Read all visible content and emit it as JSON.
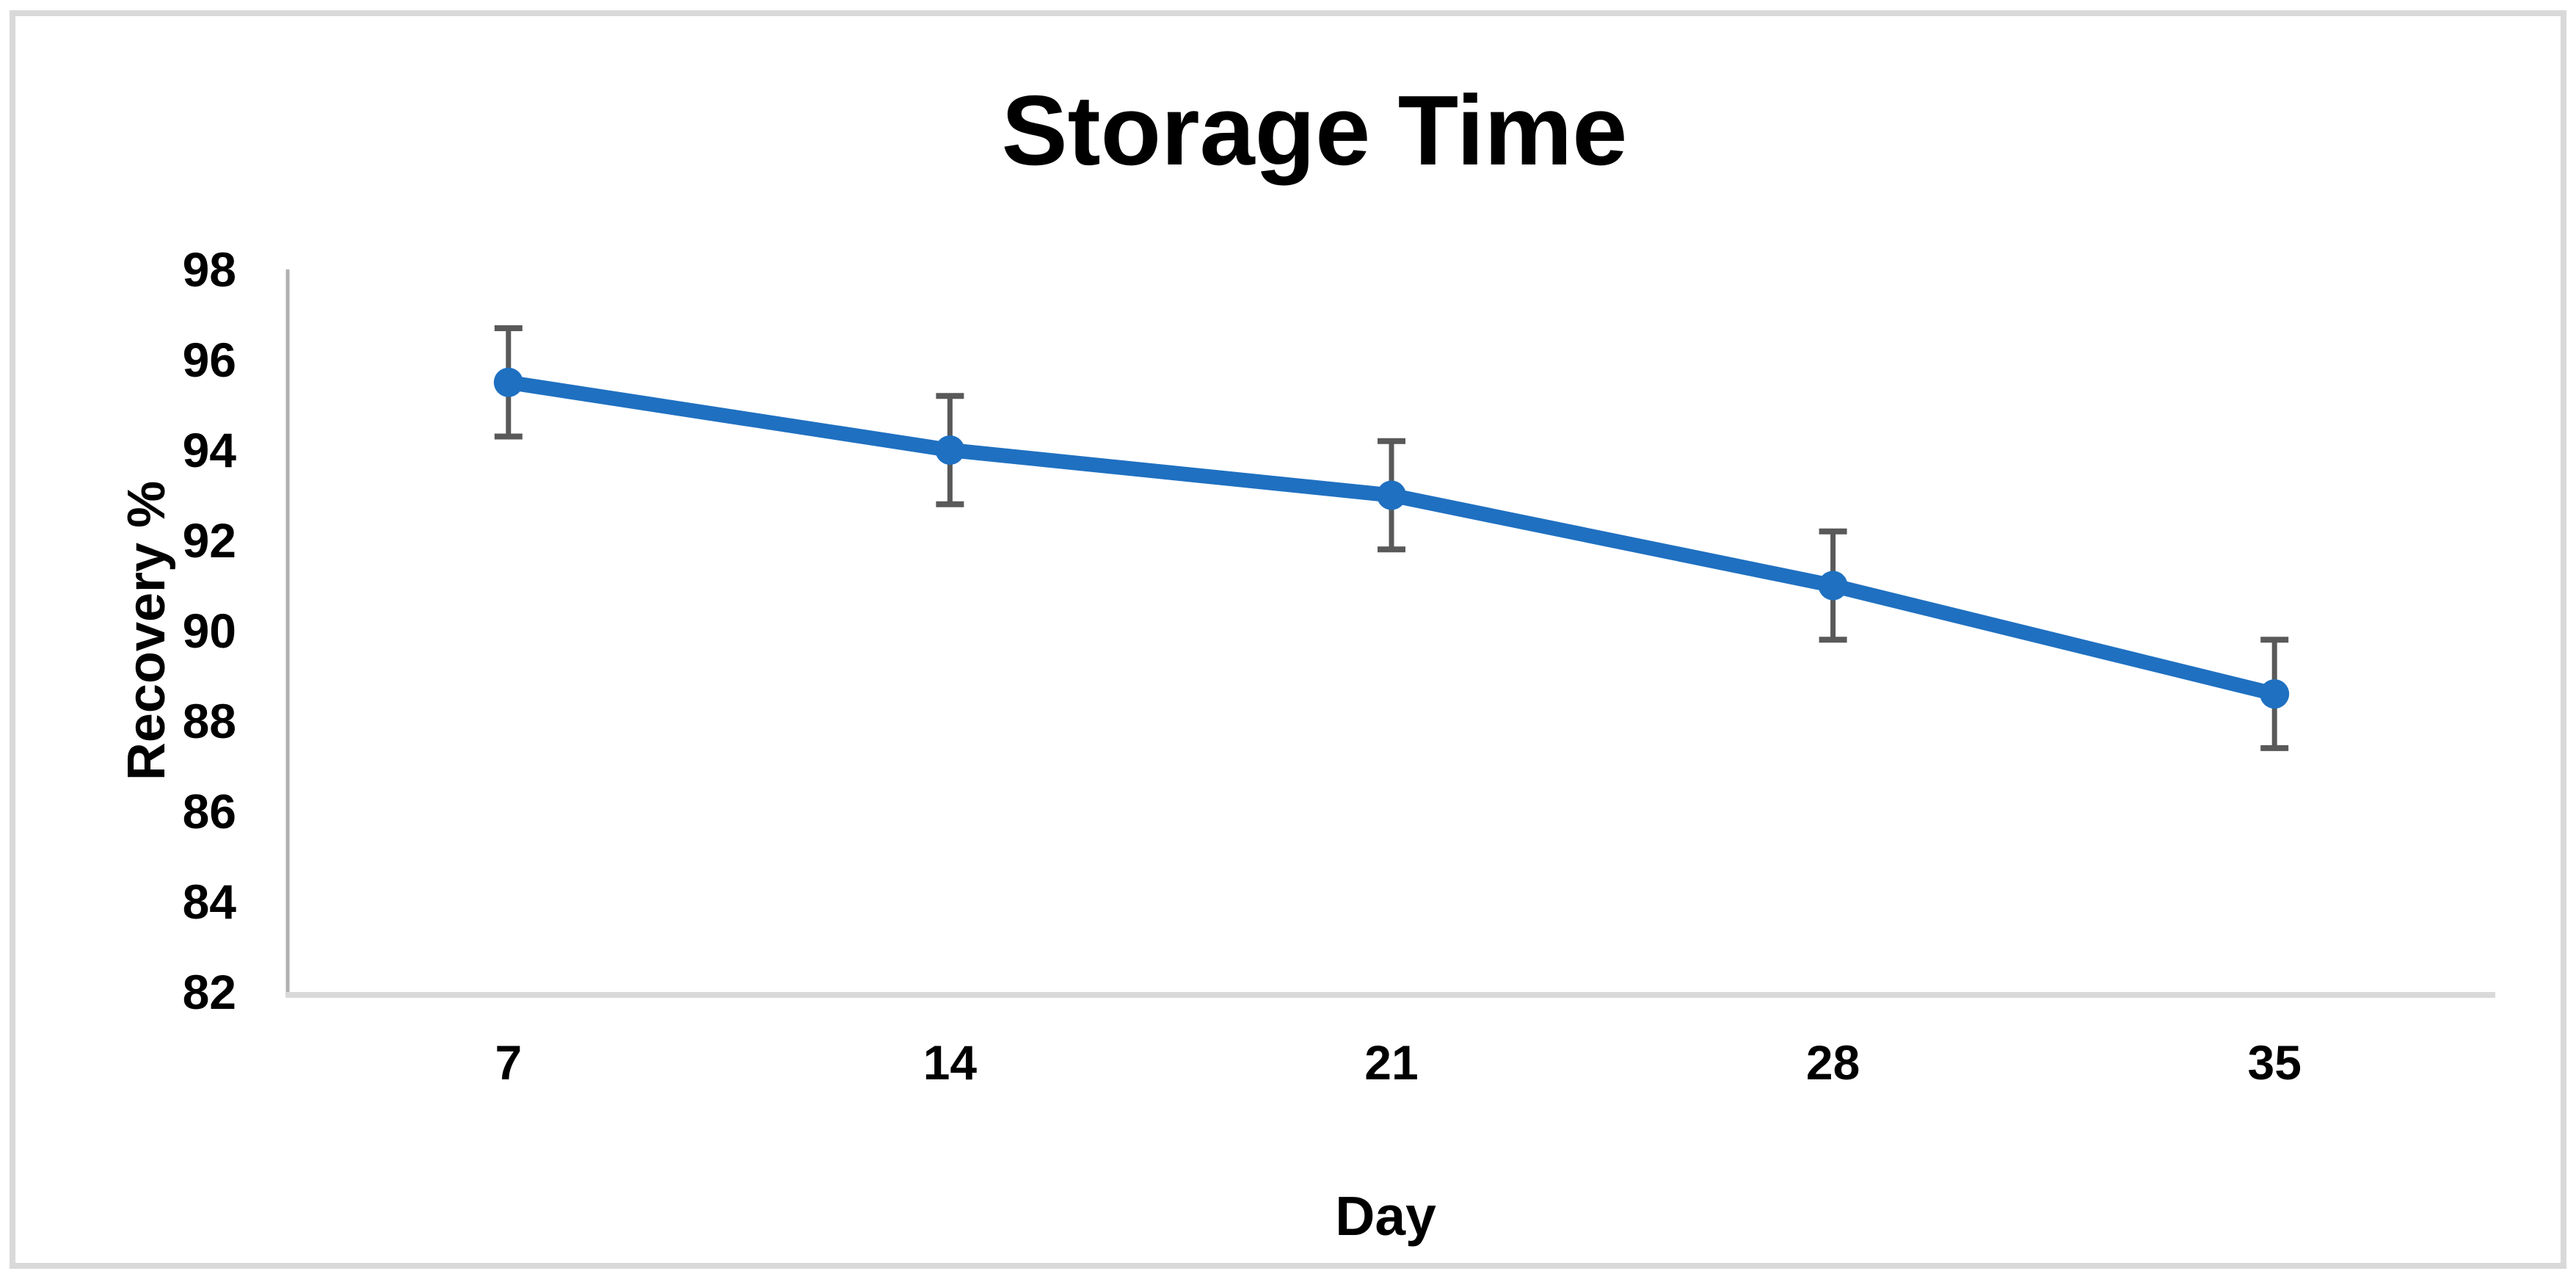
{
  "chart_data": {
    "type": "line",
    "title": "Storage Time",
    "xlabel": "Day",
    "ylabel": "Recovery %",
    "categories": [
      "7",
      "14",
      "21",
      "28",
      "35"
    ],
    "series": [
      {
        "values": [
          95.5,
          94.0,
          93.0,
          91.0,
          88.6
        ],
        "error_bars": [
          1.2,
          1.2,
          1.2,
          1.2,
          1.2
        ],
        "color": "#1F70C1",
        "marker": "circle"
      }
    ],
    "ylim": [
      82,
      98
    ],
    "ytick_step": 2,
    "yticks": [
      98,
      96,
      94,
      92,
      90,
      88,
      86,
      84,
      82
    ],
    "grid": false,
    "legend": false,
    "colors": {
      "error_bar": "#595959",
      "y_axis_line": "#B0B0B0",
      "x_axis_line": "#D9D9D9",
      "text": "#000000"
    }
  },
  "frame": {
    "border_color": "#D9D9D9",
    "background": "#FFFFFF"
  }
}
